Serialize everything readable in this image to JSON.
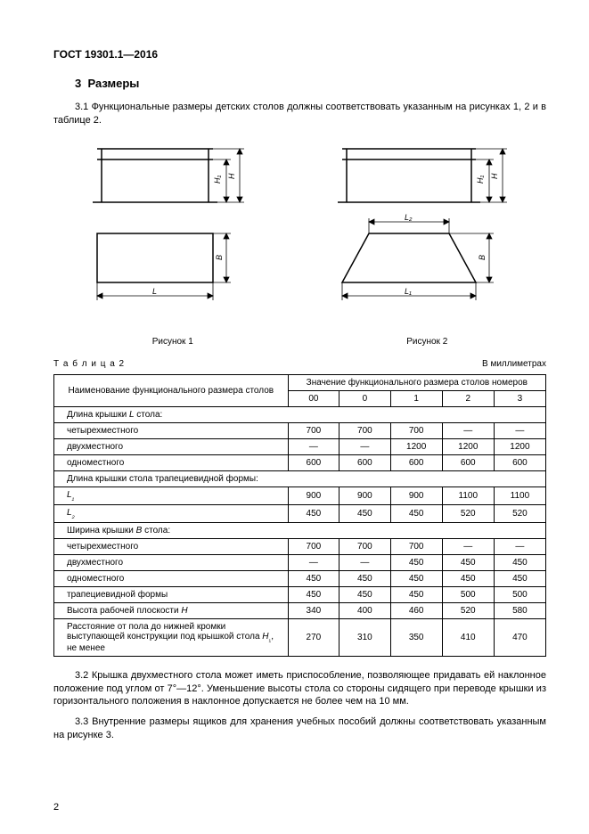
{
  "header": {
    "code": "ГОСТ 19301.1—2016"
  },
  "section": {
    "number": "3",
    "title": "Размеры"
  },
  "p31": "3.1 Функциональные размеры детских столов должны соответствовать указанным на рисунках 1, 2 и в таблице 2.",
  "fig1_caption": "Рисунок 1",
  "fig2_caption": "Рисунок 2",
  "table_label": "Т а б л и ц а  2",
  "table_units": "В миллиметрах",
  "tbl": {
    "head_name": "Наименование функционального размера столов",
    "head_vals": "Значение функционального размера столов номеров",
    "cols": [
      "00",
      "0",
      "1",
      "2",
      "3"
    ],
    "rows": [
      {
        "section": "Длина крышки L стола:"
      },
      {
        "name": "четырехместного",
        "v": [
          "700",
          "700",
          "700",
          "—",
          "—"
        ]
      },
      {
        "name": "двухместного",
        "v": [
          "—",
          "—",
          "1200",
          "1200",
          "1200"
        ]
      },
      {
        "name": "одноместного",
        "v": [
          "600",
          "600",
          "600",
          "600",
          "600"
        ]
      },
      {
        "section": "Длина крышки стола трапециевидной формы:"
      },
      {
        "name": "L₁",
        "italic": true,
        "v": [
          "900",
          "900",
          "900",
          "1100",
          "1100"
        ]
      },
      {
        "name": "L₂",
        "italic": true,
        "v": [
          "450",
          "450",
          "450",
          "520",
          "520"
        ]
      },
      {
        "section": "Ширина крышки B стола:"
      },
      {
        "name": "четырехместного",
        "v": [
          "700",
          "700",
          "700",
          "—",
          "—"
        ]
      },
      {
        "name": "двухместного",
        "v": [
          "—",
          "—",
          "450",
          "450",
          "450"
        ]
      },
      {
        "name": "одноместного",
        "v": [
          "450",
          "450",
          "450",
          "450",
          "450"
        ]
      },
      {
        "name": "трапециевидной формы",
        "v": [
          "450",
          "450",
          "450",
          "500",
          "500"
        ]
      },
      {
        "name": "Высота рабочей плоскости H",
        "v": [
          "340",
          "400",
          "460",
          "520",
          "580"
        ]
      },
      {
        "name": "Расстояние от пола до нижней кромки выступающей конструкции под крышкой стола H₁, не менее",
        "v": [
          "270",
          "310",
          "350",
          "410",
          "470"
        ]
      }
    ]
  },
  "p32": "3.2 Крышка двухместного стола может иметь приспособление, позволяющее придавать ей наклонное положение под углом от 7°—12°. Уменьшение высоты стола со стороны сидящего при переводе крышки из горизонтального положения в наклонное допускается не более чем на 10 мм.",
  "p33": "3.3 Внутренние размеры ящиков для хранения учебных пособий должны соответствовать указанным на рисунке 3.",
  "page_number": "2",
  "fig": {
    "L": "L",
    "L1": "L₁",
    "L2": "L₂",
    "B": "B",
    "H": "H",
    "H1": "H₁"
  }
}
